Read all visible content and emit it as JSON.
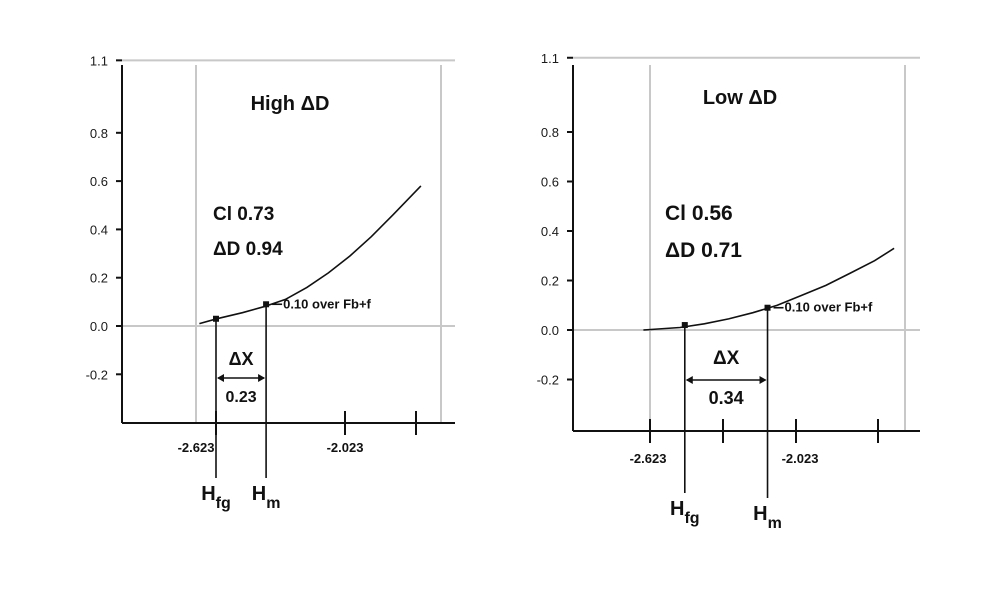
{
  "chart_data": [
    {
      "type": "line",
      "title": "High ΔD",
      "y_ticks": [
        "1.1",
        "0.8",
        "0.6",
        "0.4",
        "0.2",
        "0.0",
        "-0.2"
      ],
      "y_tick_values": [
        1.1,
        0.8,
        0.6,
        0.4,
        0.2,
        0.0,
        -0.2
      ],
      "x_tick_labels": [
        "-2.623",
        "-2.023"
      ],
      "x_tick_values": [
        -2.623,
        -2.023
      ],
      "ylim": [
        -0.35,
        1.15
      ],
      "xlim": [
        -2.9,
        -1.67
      ],
      "x": [
        -2.7,
        -2.62,
        -2.5,
        -2.4,
        -2.3,
        -2.2,
        -2.1,
        -2.0,
        -1.9,
        -1.8,
        -1.67
      ],
      "y": [
        0.01,
        0.03,
        0.055,
        0.08,
        0.11,
        0.16,
        0.22,
        0.29,
        0.37,
        0.46,
        0.58
      ],
      "points": [
        {
          "x": -2.623,
          "y": 0.03
        },
        {
          "x": -2.39,
          "y": 0.09
        }
      ],
      "stat_lines": [
        "Cl 0.73",
        "ΔD 0.94"
      ],
      "point_annotation": "0.10 over Fb+f",
      "delta_label": "ΔX",
      "delta_value": "0.23",
      "h_fg_label": {
        "main": "H",
        "sub": "fg"
      },
      "h_m_label": {
        "main": "H",
        "sub": "m"
      }
    },
    {
      "type": "line",
      "title": "Low ΔD",
      "y_ticks": [
        "1.1",
        "0.8",
        "0.6",
        "0.4",
        "0.2",
        "0.0",
        "-0.2"
      ],
      "y_tick_values": [
        1.1,
        0.8,
        0.6,
        0.4,
        0.2,
        0.0,
        -0.2
      ],
      "x_tick_labels": [
        "-2.623",
        "-2.023"
      ],
      "x_tick_values": [
        -2.623,
        -2.023
      ],
      "ylim": [
        -0.42,
        1.17
      ],
      "xlim": [
        -3.0,
        -1.62
      ],
      "x": [
        -2.65,
        -2.5,
        -2.4,
        -2.3,
        -2.2,
        -2.1,
        -2.0,
        -1.9,
        -1.8,
        -1.7,
        -1.62
      ],
      "y": [
        0.0,
        0.01,
        0.025,
        0.045,
        0.07,
        0.1,
        0.14,
        0.18,
        0.23,
        0.28,
        0.33
      ],
      "points": [
        {
          "x": -2.48,
          "y": 0.02
        },
        {
          "x": -2.14,
          "y": 0.09
        }
      ],
      "stat_lines": [
        "Cl 0.56",
        "ΔD 0.71"
      ],
      "point_annotation": "0.10 over Fb+f",
      "delta_label": "ΔX",
      "delta_value": "0.34",
      "h_fg_label": {
        "main": "H",
        "sub": "fg"
      },
      "h_m_label": {
        "main": "H",
        "sub": "m"
      }
    }
  ]
}
